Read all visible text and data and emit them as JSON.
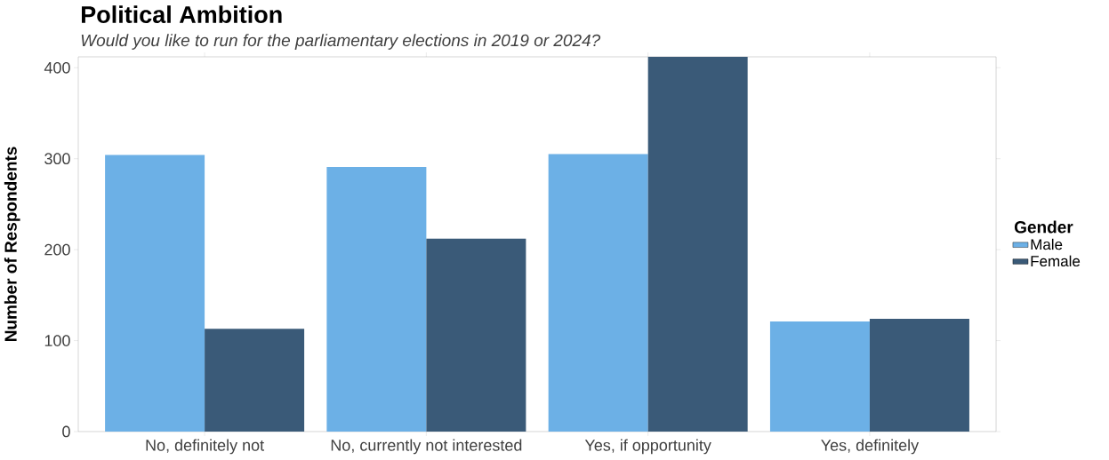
{
  "chart_data": {
    "type": "bar",
    "title": "Political Ambition",
    "subtitle": "Would you like to run for the parliamentary elections in 2019 or 2024?",
    "ylabel": "Number of Respondents",
    "legend_title": "Gender",
    "categories": [
      "No, definitely not",
      "No, currently not interested",
      "Yes, if opportunity",
      "Yes, definitely"
    ],
    "series": [
      {
        "name": "Male",
        "color": "#6cb0e6",
        "values": [
          304,
          291,
          305,
          121
        ]
      },
      {
        "name": "Female",
        "color": "#3a5a78",
        "values": [
          113,
          212,
          412,
          124
        ]
      }
    ],
    "ylim": [
      0,
      412
    ],
    "yticks": [
      0,
      100,
      200,
      300,
      400
    ],
    "grid": false,
    "legend": "right"
  }
}
